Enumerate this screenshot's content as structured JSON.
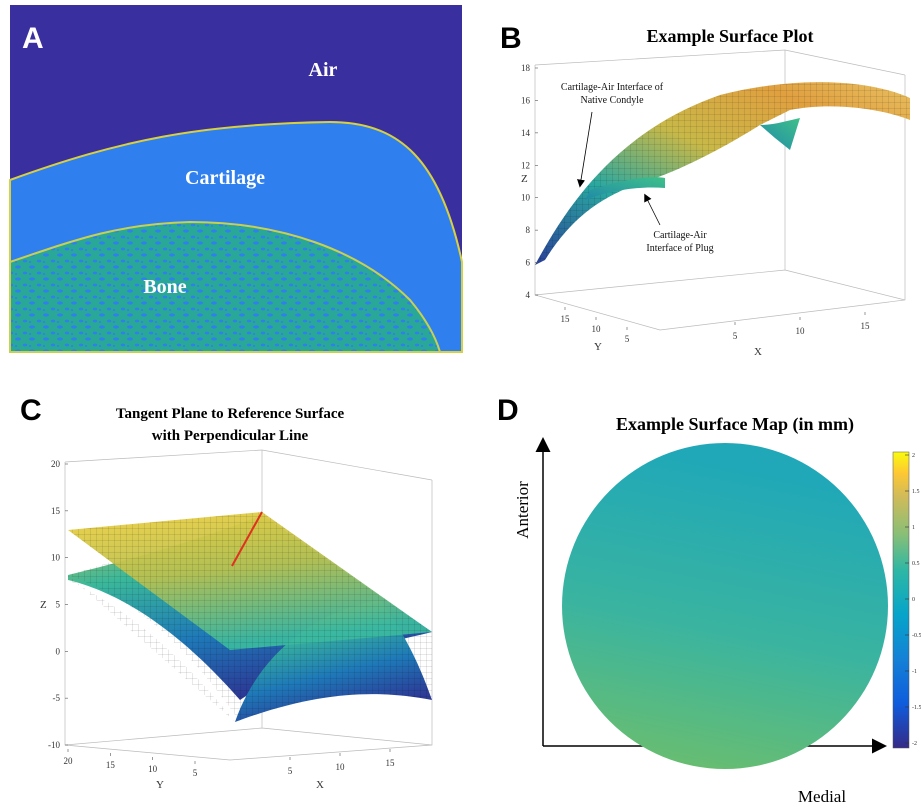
{
  "panels": {
    "a": {
      "letter": "A",
      "labels": [
        "Air",
        "Cartilage",
        "Bone"
      ]
    },
    "b": {
      "letter": "B",
      "title": "Example Surface Plot",
      "zticks": [
        18,
        16,
        14,
        12,
        10,
        8,
        6,
        4
      ],
      "yticks": [
        15,
        10,
        5
      ],
      "xticks": [
        5,
        10,
        15
      ],
      "xlabel": "X",
      "ylabel": "Y",
      "zlabel": "Z",
      "annotations": [
        [
          "Cartilage-Air Interface of",
          "Native Condyle"
        ],
        [
          "Cartilage-Air",
          "Interface of Plug"
        ]
      ]
    },
    "c": {
      "letter": "C",
      "title": [
        "Tangent Plane to Reference Surface",
        "with Perpendicular Line"
      ],
      "zticks": [
        20,
        15,
        10,
        5,
        0,
        -5,
        -10
      ],
      "yticks": [
        20,
        15,
        10,
        5
      ],
      "xticks": [
        5,
        10,
        15
      ],
      "xlabel": "X",
      "ylabel": "Y",
      "zlabel": "Z"
    },
    "d": {
      "letter": "D",
      "title": "Example Surface Map (in mm)",
      "ylabel": "Anterior",
      "xlabel": "Medial",
      "colorbar_ticks": [
        2,
        1.5,
        1,
        0.5,
        0,
        -0.5,
        -1,
        -1.5,
        -2
      ]
    }
  }
}
